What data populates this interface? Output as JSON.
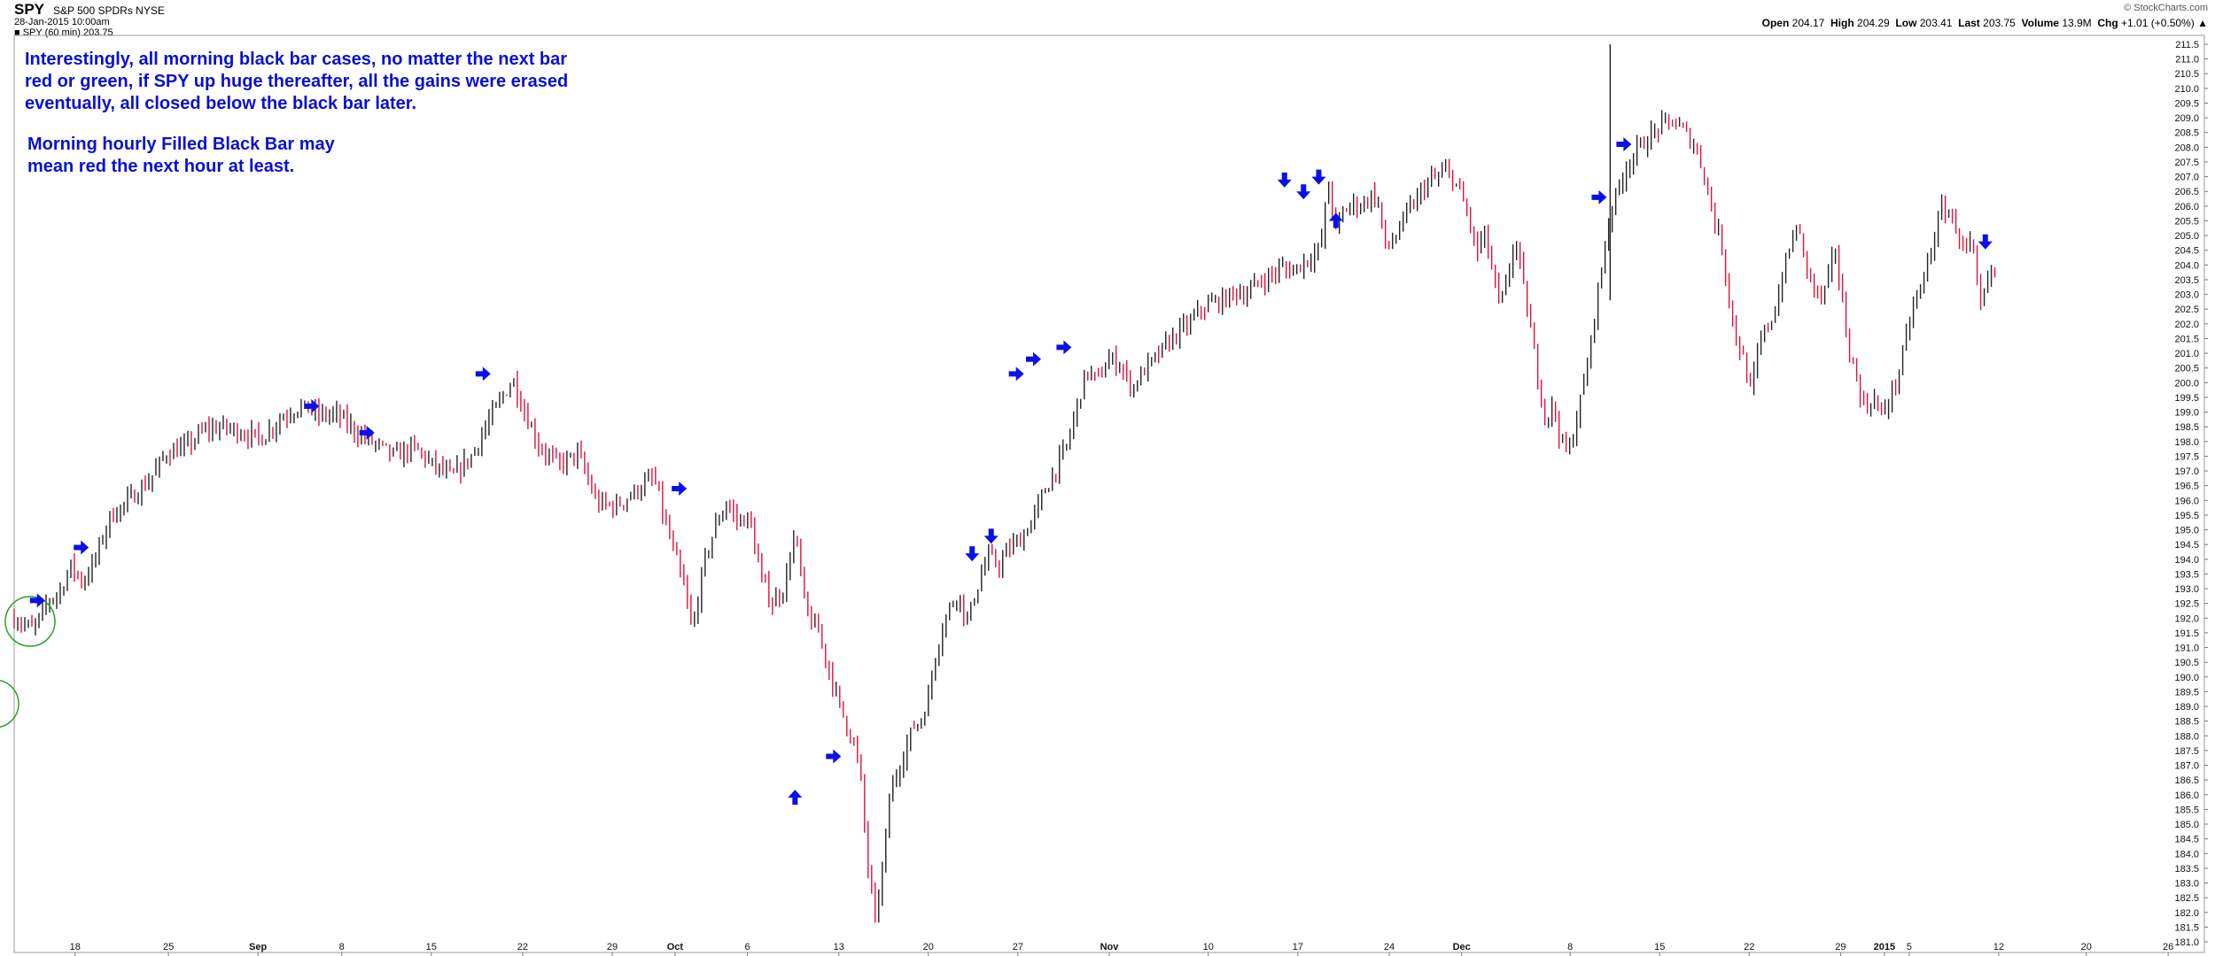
{
  "header": {
    "symbol": "SPY",
    "name": "S&P 500 SPDRs",
    "exchange": "NYSE",
    "date": "28-Jan-2015 10:00am",
    "legend": "SPY (60 min) 203.75",
    "attribution": "© StockCharts.com",
    "quote": {
      "open_label": "Open",
      "open": "204.17",
      "high_label": "High",
      "high": "204.29",
      "low_label": "Low",
      "low": "203.41",
      "last_label": "Last",
      "last": "203.75",
      "volume_label": "Volume",
      "volume": "13.9M",
      "chg_label": "Chg",
      "chg": "+1.01 (+0.50%)"
    }
  },
  "annotations": {
    "note1": "Interestingly, all morning black bar cases, no matter the next bar\nred or green, if SPY up huge thereafter, all the gains were erased\neventually, all closed below the black bar later.",
    "note2": "Morning hourly Filled Black Bar may\nmean red the next hour at least."
  },
  "colors": {
    "up_bar": "#222222",
    "down_bar": "#e0103a",
    "arrow": "#0a10e8",
    "circle": "#2aa02a",
    "grid": "#dddddd"
  },
  "chart_data": {
    "type": "line",
    "title": "SPY (60 min)",
    "ylim": [
      181.0,
      211.5
    ],
    "y_ticks": [
      "211.5",
      "211.0",
      "210.5",
      "210.0",
      "209.5",
      "209.0",
      "208.5",
      "208.0",
      "207.5",
      "207.0",
      "206.5",
      "206.0",
      "205.5",
      "205.0",
      "204.5",
      "204.0",
      "203.5",
      "203.0",
      "202.5",
      "202.0",
      "201.5",
      "201.0",
      "200.5",
      "200.0",
      "199.5",
      "199.0",
      "198.5",
      "198.0",
      "197.5",
      "197.0",
      "196.5",
      "196.0",
      "195.5",
      "195.0",
      "194.5",
      "194.0",
      "193.5",
      "193.0",
      "192.5",
      "192.0",
      "191.5",
      "191.0",
      "190.5",
      "190.0",
      "189.5",
      "189.0",
      "188.5",
      "188.0",
      "187.5",
      "187.0",
      "186.5",
      "186.0",
      "185.5",
      "185.0",
      "184.5",
      "184.0",
      "183.5",
      "183.0",
      "182.5",
      "182.0",
      "181.5",
      "181.0"
    ],
    "x_ticks": [
      {
        "label": "18",
        "x": 0.032
      },
      {
        "label": "25",
        "x": 0.081
      },
      {
        "label": "Sep",
        "x": 0.128
      },
      {
        "label": "8",
        "x": 0.172
      },
      {
        "label": "15",
        "x": 0.219
      },
      {
        "label": "22",
        "x": 0.267
      },
      {
        "label": "29",
        "x": 0.314
      },
      {
        "label": "Oct",
        "x": 0.347
      },
      {
        "label": "6",
        "x": 0.385
      },
      {
        "label": "13",
        "x": 0.433
      },
      {
        "label": "20",
        "x": 0.48
      },
      {
        "label": "27",
        "x": 0.527
      },
      {
        "label": "Nov",
        "x": 0.575
      },
      {
        "label": "10",
        "x": 0.627
      },
      {
        "label": "17",
        "x": 0.674
      },
      {
        "label": "24",
        "x": 0.722
      },
      {
        "label": "Dec",
        "x": 0.76
      },
      {
        "label": "8",
        "x": 0.817
      },
      {
        "label": "15",
        "x": 0.864
      },
      {
        "label": "22",
        "x": 0.911
      },
      {
        "label": "29",
        "x": 0.959
      },
      {
        "label": "2015",
        "x": 0.982
      },
      {
        "label": "5",
        "x": 0.995
      },
      {
        "label": "12",
        "x": 1.042
      },
      {
        "label": "20",
        "x": 1.088
      },
      {
        "label": "26",
        "x": 1.131
      }
    ],
    "path": [
      [
        0.0,
        192.0
      ],
      [
        0.01,
        191.6
      ],
      [
        0.018,
        192.6
      ],
      [
        0.024,
        192.9
      ],
      [
        0.03,
        193.8
      ],
      [
        0.036,
        193.2
      ],
      [
        0.042,
        193.9
      ],
      [
        0.05,
        195.4
      ],
      [
        0.06,
        196.0
      ],
      [
        0.07,
        196.6
      ],
      [
        0.08,
        197.6
      ],
      [
        0.09,
        197.8
      ],
      [
        0.1,
        198.4
      ],
      [
        0.11,
        198.5
      ],
      [
        0.12,
        198.3
      ],
      [
        0.13,
        198.1
      ],
      [
        0.14,
        198.8
      ],
      [
        0.15,
        199.2
      ],
      [
        0.16,
        198.9
      ],
      [
        0.17,
        198.9
      ],
      [
        0.18,
        198.3
      ],
      [
        0.19,
        197.9
      ],
      [
        0.2,
        197.5
      ],
      [
        0.21,
        197.8
      ],
      [
        0.22,
        197.2
      ],
      [
        0.23,
        196.8
      ],
      [
        0.24,
        197.5
      ],
      [
        0.25,
        198.8
      ],
      [
        0.258,
        199.7
      ],
      [
        0.262,
        200.1
      ],
      [
        0.268,
        199.0
      ],
      [
        0.276,
        197.8
      ],
      [
        0.286,
        197.2
      ],
      [
        0.296,
        197.6
      ],
      [
        0.306,
        195.9
      ],
      [
        0.316,
        195.8
      ],
      [
        0.326,
        196.3
      ],
      [
        0.336,
        196.8
      ],
      [
        0.342,
        195.2
      ],
      [
        0.348,
        193.9
      ],
      [
        0.353,
        192.7
      ],
      [
        0.356,
        191.5
      ],
      [
        0.362,
        193.8
      ],
      [
        0.368,
        195.1
      ],
      [
        0.374,
        195.9
      ],
      [
        0.38,
        195.3
      ],
      [
        0.386,
        195.4
      ],
      [
        0.392,
        193.4
      ],
      [
        0.398,
        192.5
      ],
      [
        0.404,
        193.0
      ],
      [
        0.41,
        194.9
      ],
      [
        0.416,
        192.1
      ],
      [
        0.422,
        191.6
      ],
      [
        0.428,
        190.2
      ],
      [
        0.434,
        188.9
      ],
      [
        0.44,
        187.9
      ],
      [
        0.444,
        186.9
      ],
      [
        0.448,
        183.7
      ],
      [
        0.452,
        181.7
      ],
      [
        0.456,
        183.5
      ],
      [
        0.46,
        186.1
      ],
      [
        0.466,
        187.2
      ],
      [
        0.472,
        188.3
      ],
      [
        0.476,
        188.5
      ],
      [
        0.48,
        189.3
      ],
      [
        0.484,
        190.9
      ],
      [
        0.49,
        192.2
      ],
      [
        0.496,
        192.9
      ],
      [
        0.5,
        191.8
      ],
      [
        0.505,
        192.9
      ],
      [
        0.511,
        194.1
      ],
      [
        0.517,
        193.8
      ],
      [
        0.523,
        194.4
      ],
      [
        0.529,
        194.7
      ],
      [
        0.535,
        195.4
      ],
      [
        0.541,
        196.3
      ],
      [
        0.547,
        197.1
      ],
      [
        0.553,
        197.9
      ],
      [
        0.558,
        199.2
      ],
      [
        0.563,
        200.4
      ],
      [
        0.569,
        200.1
      ],
      [
        0.575,
        200.8
      ],
      [
        0.581,
        200.6
      ],
      [
        0.587,
        199.8
      ],
      [
        0.593,
        200.4
      ],
      [
        0.599,
        200.8
      ],
      [
        0.605,
        201.3
      ],
      [
        0.611,
        201.7
      ],
      [
        0.617,
        202.0
      ],
      [
        0.623,
        202.5
      ],
      [
        0.629,
        202.7
      ],
      [
        0.635,
        202.8
      ],
      [
        0.641,
        203.1
      ],
      [
        0.647,
        203.0
      ],
      [
        0.653,
        203.4
      ],
      [
        0.659,
        203.6
      ],
      [
        0.665,
        203.9
      ],
      [
        0.671,
        203.8
      ],
      [
        0.677,
        204.1
      ],
      [
        0.683,
        204.4
      ],
      [
        0.686,
        204.6
      ],
      [
        0.69,
        206.8
      ],
      [
        0.694,
        205.2
      ],
      [
        0.698,
        205.8
      ],
      [
        0.703,
        206.1
      ],
      [
        0.708,
        206.0
      ],
      [
        0.712,
        206.4
      ],
      [
        0.716,
        206.2
      ],
      [
        0.72,
        204.6
      ],
      [
        0.724,
        204.8
      ],
      [
        0.73,
        205.6
      ],
      [
        0.736,
        206.2
      ],
      [
        0.742,
        206.8
      ],
      [
        0.748,
        207.0
      ],
      [
        0.752,
        207.2
      ],
      [
        0.756,
        206.9
      ],
      [
        0.76,
        206.3
      ],
      [
        0.764,
        205.5
      ],
      [
        0.768,
        204.4
      ],
      [
        0.772,
        205.1
      ],
      [
        0.776,
        203.8
      ],
      [
        0.78,
        202.6
      ],
      [
        0.784,
        203.4
      ],
      [
        0.788,
        205.0
      ],
      [
        0.792,
        203.4
      ],
      [
        0.796,
        201.9
      ],
      [
        0.8,
        200.2
      ],
      [
        0.804,
        198.8
      ],
      [
        0.808,
        199.2
      ],
      [
        0.812,
        198.1
      ],
      [
        0.816,
        197.5
      ],
      [
        0.82,
        198.7
      ],
      [
        0.824,
        199.9
      ],
      [
        0.828,
        201.4
      ],
      [
        0.831,
        203.0
      ],
      [
        0.834,
        204.0
      ],
      [
        0.838,
        205.9
      ],
      [
        0.842,
        206.5
      ],
      [
        0.846,
        207.3
      ],
      [
        0.852,
        207.9
      ],
      [
        0.858,
        208.3
      ],
      [
        0.864,
        208.7
      ],
      [
        0.87,
        208.9
      ],
      [
        0.876,
        208.6
      ],
      [
        0.882,
        208.1
      ],
      [
        0.888,
        207.0
      ],
      [
        0.892,
        205.6
      ],
      [
        0.896,
        204.9
      ],
      [
        0.9,
        203.1
      ],
      [
        0.904,
        201.5
      ],
      [
        0.908,
        200.8
      ],
      [
        0.912,
        199.6
      ],
      [
        0.916,
        201.2
      ],
      [
        0.92,
        201.9
      ],
      [
        0.924,
        202.3
      ],
      [
        0.928,
        203.5
      ],
      [
        0.932,
        204.5
      ],
      [
        0.936,
        205.4
      ],
      [
        0.94,
        204.2
      ],
      [
        0.944,
        203.4
      ],
      [
        0.948,
        202.8
      ],
      [
        0.952,
        203.3
      ],
      [
        0.956,
        204.7
      ],
      [
        0.96,
        202.6
      ],
      [
        0.964,
        200.9
      ],
      [
        0.968,
        200.0
      ],
      [
        0.972,
        199.0
      ],
      [
        0.976,
        199.6
      ],
      [
        0.98,
        198.8
      ],
      [
        0.984,
        199.4
      ],
      [
        0.988,
        200.0
      ],
      [
        0.992,
        201.0
      ],
      [
        0.996,
        202.4
      ],
      [
        1.0,
        203.0
      ],
      [
        1.004,
        203.9
      ],
      [
        1.008,
        204.9
      ],
      [
        1.012,
        205.9
      ],
      [
        1.016,
        205.8
      ],
      [
        1.02,
        205.2
      ],
      [
        1.024,
        204.5
      ],
      [
        1.028,
        204.7
      ],
      [
        1.032,
        202.4
      ],
      [
        1.036,
        203.4
      ],
      [
        1.04,
        203.8
      ]
    ],
    "arrows": [
      {
        "x": 0.012,
        "y": 192.6,
        "dir": "right"
      },
      {
        "x": 0.035,
        "y": 194.4,
        "dir": "right"
      },
      {
        "x": 0.156,
        "y": 199.2,
        "dir": "right"
      },
      {
        "x": 0.185,
        "y": 198.3,
        "dir": "right"
      },
      {
        "x": 0.246,
        "y": 200.3,
        "dir": "right"
      },
      {
        "x": 0.349,
        "y": 196.4,
        "dir": "right"
      },
      {
        "x": 0.41,
        "y": 185.9,
        "dir": "up"
      },
      {
        "x": 0.43,
        "y": 187.3,
        "dir": "right"
      },
      {
        "x": 0.503,
        "y": 194.2,
        "dir": "down"
      },
      {
        "x": 0.513,
        "y": 194.8,
        "dir": "down"
      },
      {
        "x": 0.526,
        "y": 200.3,
        "dir": "right"
      },
      {
        "x": 0.535,
        "y": 200.8,
        "dir": "right"
      },
      {
        "x": 0.551,
        "y": 201.2,
        "dir": "right"
      },
      {
        "x": 0.667,
        "y": 206.9,
        "dir": "down"
      },
      {
        "x": 0.677,
        "y": 206.5,
        "dir": "down"
      },
      {
        "x": 0.685,
        "y": 207.0,
        "dir": "down"
      },
      {
        "x": 0.694,
        "y": 205.5,
        "dir": "up"
      },
      {
        "x": 0.832,
        "y": 206.3,
        "dir": "right"
      },
      {
        "x": 0.845,
        "y": 208.1,
        "dir": "right"
      },
      {
        "x": 1.035,
        "y": 204.8,
        "dir": "down"
      }
    ]
  }
}
